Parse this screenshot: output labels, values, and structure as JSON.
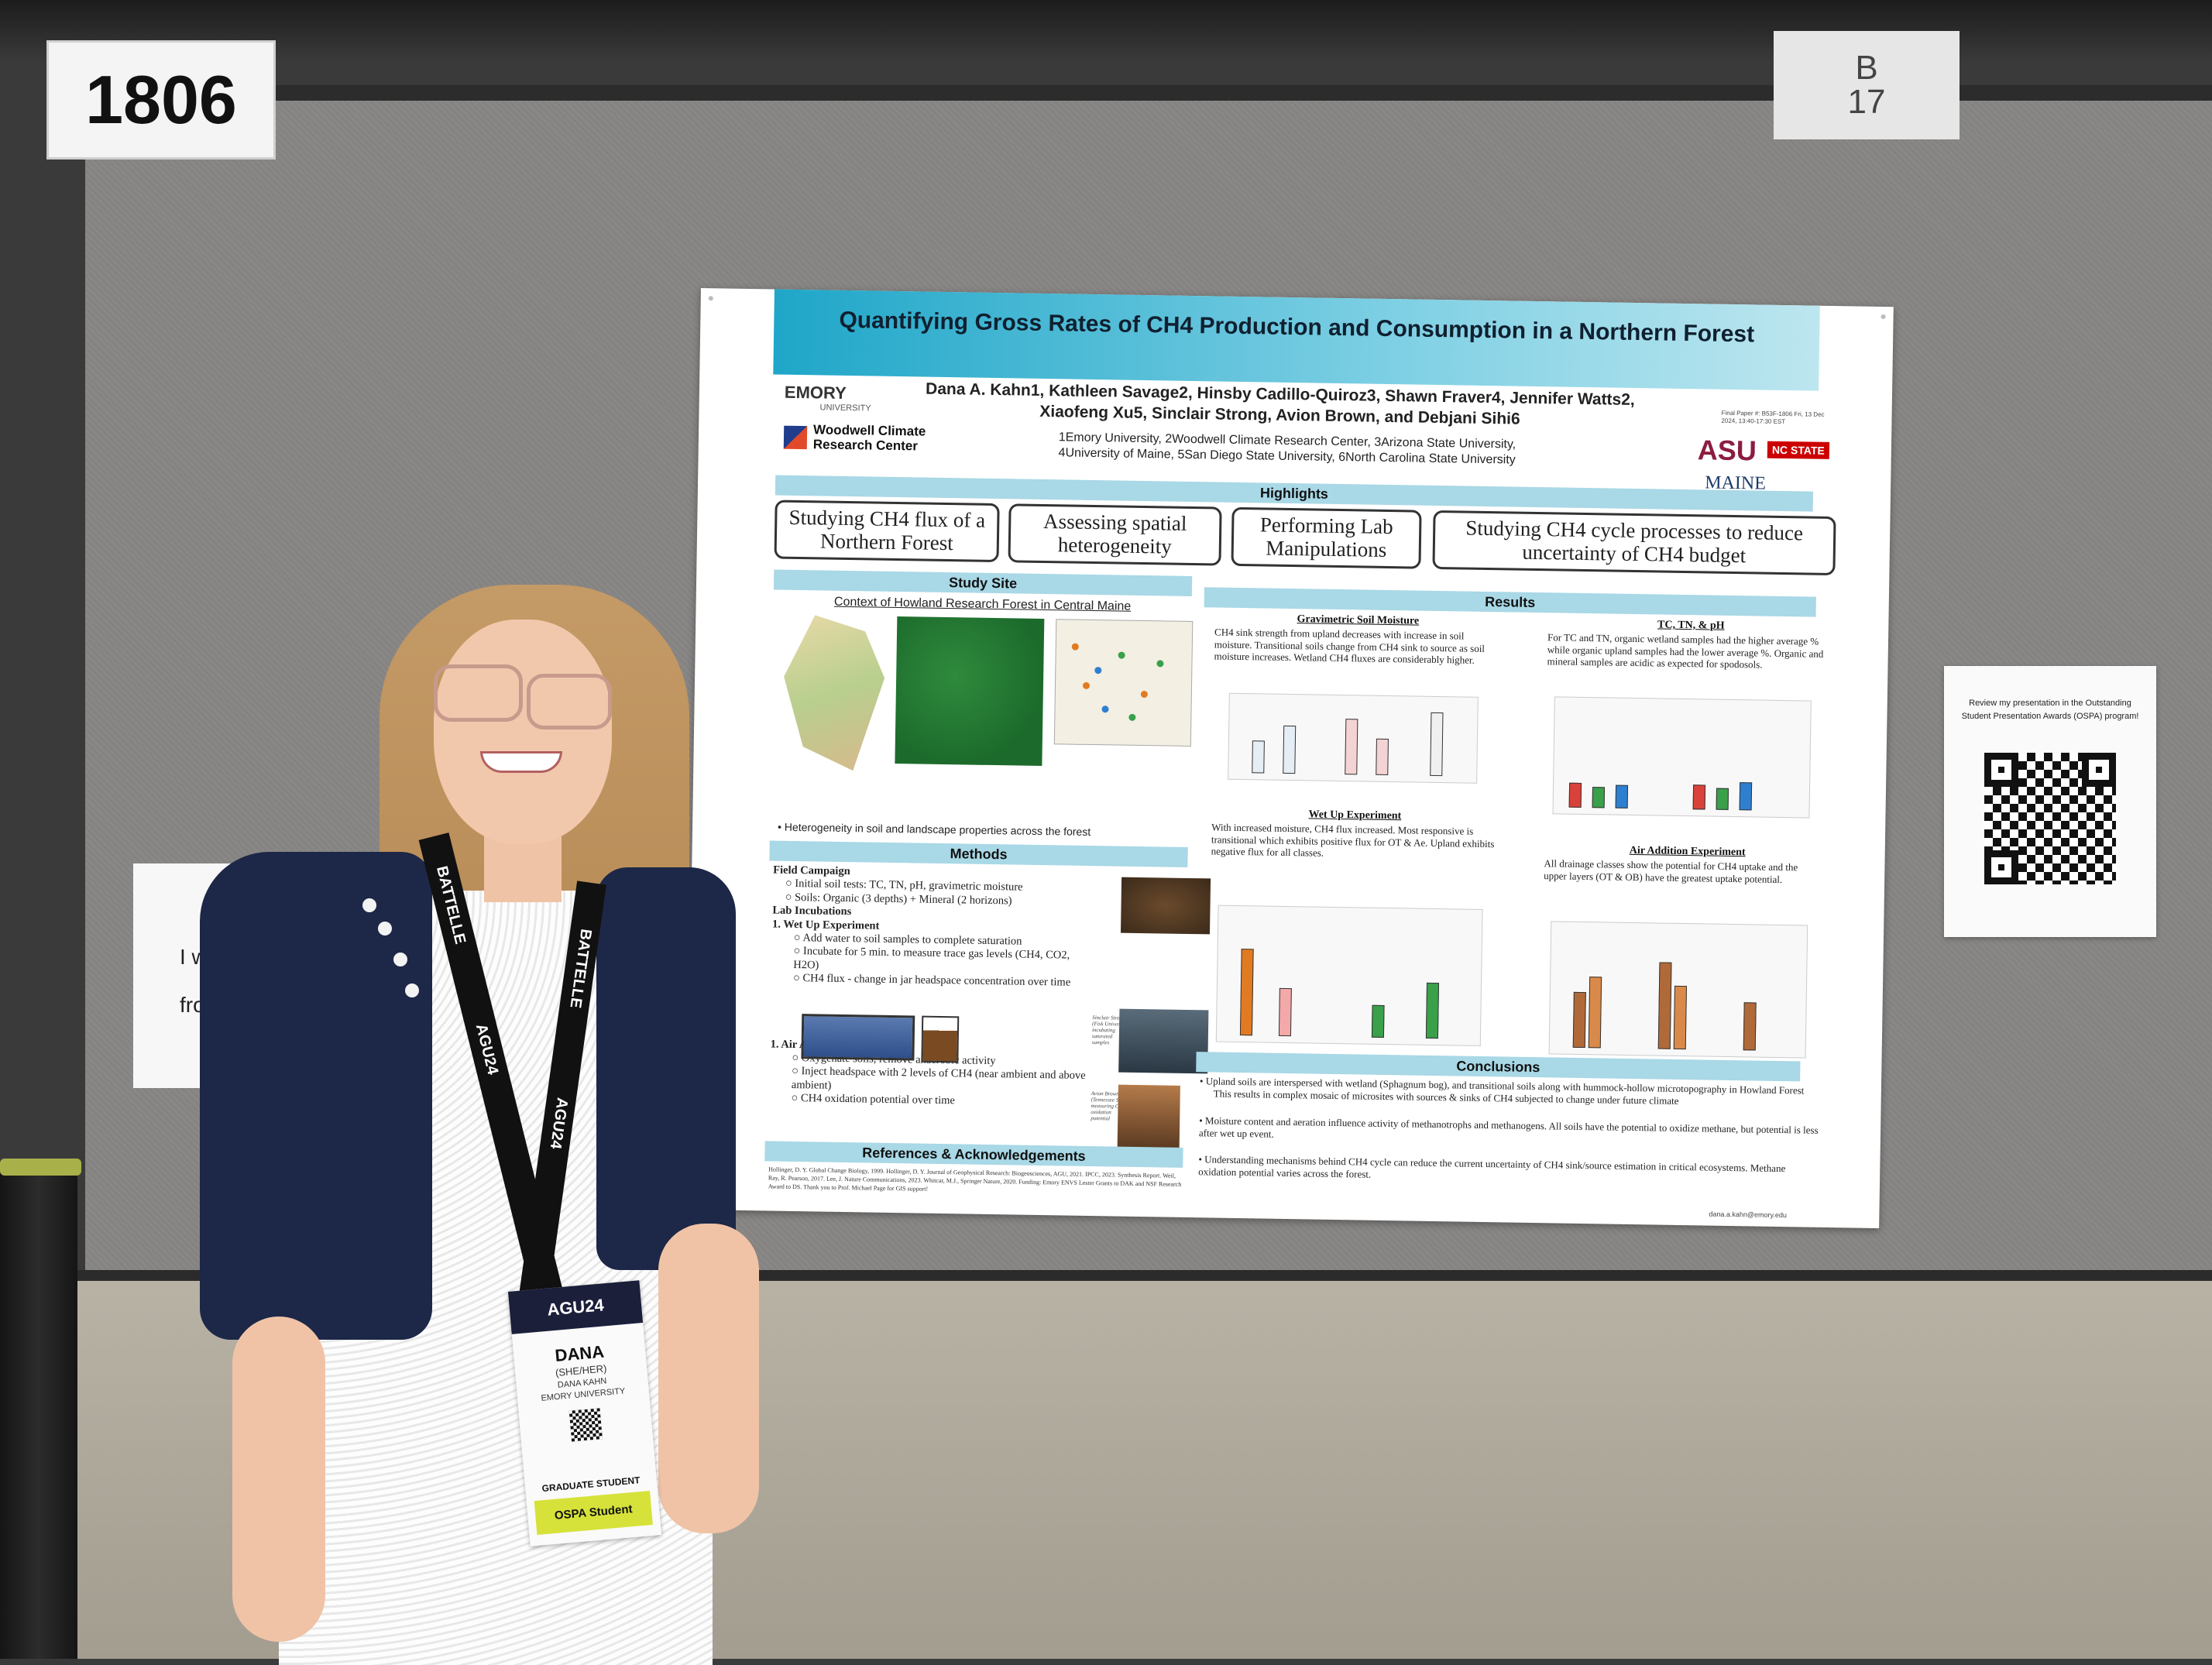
{
  "booth": {
    "number": "1806",
    "pillar_sign": [
      "B",
      "17"
    ]
  },
  "left_paper": {
    "lines": [
      "I wil",
      "from"
    ]
  },
  "ospa_card": {
    "text": "Review my presentation in the Outstanding Student Presentation Awards (OSPA) program!"
  },
  "poster": {
    "title": "Quantifying Gross Rates of CH4 Production and Consumption in a Northern Forest",
    "authors_line1": "Dana A. Kahn1, Kathleen Savage2, Hinsby Cadillo-Quiroz3, Shawn Fraver4, Jennifer Watts2,",
    "authors_line2": "Xiaofeng Xu5, Sinclair Strong, Avion Brown, and Debjani Sihi6",
    "affil_line1": "1Emory University, 2Woodwell Climate Research Center, 3Arizona State University,",
    "affil_line2": "4University of Maine, 5San Diego State University, 6North Carolina State University",
    "final_paper": "Final Paper #: B53F-1806 Fri, 13 Dec 2024, 13:40-17:30 EST",
    "logos": {
      "emory": "EMORY",
      "emory_sub": "UNIVERSITY",
      "woodwell": "Woodwell Climate Research Center",
      "asu": "ASU",
      "ncstate": "NC STATE",
      "maine": "MAINE"
    },
    "sections": {
      "highlights": "Highlights",
      "study_site": "Study Site",
      "results": "Results",
      "methods": "Methods",
      "references": "References & Acknowledgements",
      "conclusions": "Conclusions"
    },
    "highlights": [
      "Studying CH4 flux of a Northern Forest",
      "Assessing spatial heterogeneity",
      "Performing Lab Manipulations",
      "Studying CH4 cycle processes to reduce uncertainty of CH4 budget"
    ],
    "study_site": {
      "map_title": "Context of Howland Research Forest in Central Maine",
      "bullet": "• Heterogeneity in soil and landscape properties across the forest"
    },
    "methods": {
      "lines": [
        "Field Campaign",
        "○ Initial soil tests: TC, TN, pH, gravimetric moisture",
        "○ Soils: Organic (3 depths) + Mineral (2 horizons)",
        "Lab Incubations",
        "1. Wet Up Experiment",
        "○ Add water to soil samples to complete saturation",
        "○ Incubate for 5 min. to measure trace gas levels (CH4, CO2, H2O)",
        "○ CH4 flux - change in jar headspace concentration over time",
        "1. Air Addition Experiment",
        "○ Oxygenate soils, remove anaerobic activity",
        "○ Inject headspace with 2 levels of CH4 (near ambient and above ambient)",
        "○ CH4 oxidation potential over time"
      ],
      "caption1": "Sinclair Strong (Fisk University) incubating saturated samples",
      "caption2": "Avion Brown (Tennessee State) measuring CH4 oxidation potential"
    },
    "references": "Hollinger, D. Y. Global Change Biology, 1999. Hollinger, D. Y. Journal of Geophysical Research: Biogeosciences, AGU, 2021. IPCC, 2023. Synthesis Report. Weil, Ray, R. Pearson, 2017. Lee, J. Nature Communications, 2023. Whitcar, M.J., Springer Nature, 2020. Funding: Emory ENVS Lester Grants to DAK and NSF Research Award to DS. Thank you to Prof. Michael Page for GIS support!",
    "results": {
      "grav_head": "Gravimetric Soil Moisture",
      "grav_body": "CH4 sink strength from upland decreases with increase in soil moisture. Transitional soils change from CH4 sink to source as soil moisture increases. Wetland CH4 fluxes are considerably higher.",
      "tctn_head": "TC, TN, & pH",
      "tctn_body": "For TC and TN, organic wetland samples had the higher average % while organic upland samples had the lower average %. Organic and mineral samples are acidic as expected for spodosols.",
      "wet_head": "Wet Up Experiment",
      "wet_body": "With increased moisture, CH4 flux increased. Most responsive is transitional which exhibits positive flux for OT & Ae. Upland exhibits negative flux for all classes.",
      "air_head": "Air Addition Experiment",
      "air_body": "All drainage classes show the potential for CH4 uptake and the upper layers (OT & OB) have the greatest uptake potential."
    },
    "conclusions": [
      "• Upland soils are interspersed with wetland (Sphagnum bog), and transitional soils along with hummock-hollow microtopography in Howland Forest",
      "This results in complex mosaic of microsites with sources & sinks of CH4 subjected to change under future climate",
      "• Moisture content and aeration influence activity of methanotrophs and methanogens. All soils have the potential to oxidize methane, but potential is less after wet up event.",
      "• Understanding mechanisms behind CH4 cycle can reduce the current uncertainty of CH4 sink/source estimation in critical ecosystems. Methane oxidation potential varies across the forest."
    ],
    "email": "dana.a.kahn@emory.edu"
  },
  "badge": {
    "event": "AGU24",
    "name": "DANA",
    "pronouns": "(SHE/HER)",
    "full_name": "DANA KAHN",
    "university": "EMORY UNIVERSITY",
    "role": "GRADUATE STUDENT",
    "ospa": "OSPA Student"
  },
  "lanyard": {
    "sponsor": "BATTELLE",
    "event": "AGU24"
  },
  "colors": {
    "poster_header": "#1fa6c8",
    "section_bar": "#a9d8e6",
    "cardigan": "#1d2747",
    "badge_ospa": "#d6e23a"
  }
}
